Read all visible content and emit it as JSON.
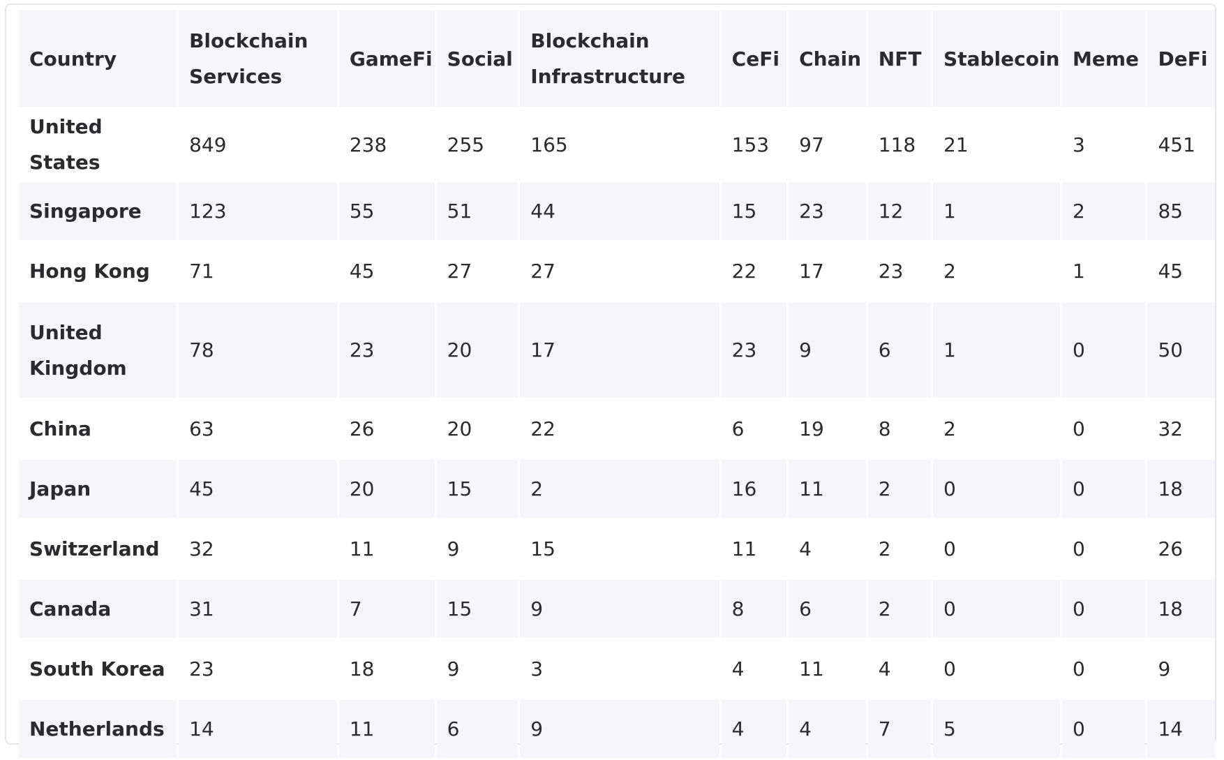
{
  "table": {
    "headers": [
      "Country",
      "Blockchain Services",
      "GameFi",
      "Social",
      "Blockchain Infrastructure",
      "CeFi",
      "Chain",
      "NFT",
      "Stablecoin",
      "Meme",
      "DeFi"
    ],
    "rows": [
      [
        "United States",
        "849",
        "238",
        "255",
        "165",
        "153",
        "97",
        "118",
        "21",
        "3",
        "451"
      ],
      [
        "Singapore",
        "123",
        "55",
        "51",
        "44",
        "15",
        "23",
        "12",
        "1",
        "2",
        "85"
      ],
      [
        "Hong Kong",
        "71",
        "45",
        "27",
        "27",
        "22",
        "17",
        "23",
        "2",
        "1",
        "45"
      ],
      [
        "United Kingdom",
        "78",
        "23",
        "20",
        "17",
        "23",
        "9",
        "6",
        "1",
        "0",
        "50"
      ],
      [
        "China",
        "63",
        "26",
        "20",
        "22",
        "6",
        "19",
        "8",
        "2",
        "0",
        "32"
      ],
      [
        "Japan",
        "45",
        "20",
        "15",
        "2",
        "16",
        "11",
        "2",
        "0",
        "0",
        "18"
      ],
      [
        "Switzerland",
        "32",
        "11",
        "9",
        "15",
        "11",
        "4",
        "2",
        "0",
        "0",
        "26"
      ],
      [
        "Canada",
        "31",
        "7",
        "15",
        "9",
        "8",
        "6",
        "2",
        "0",
        "0",
        "18"
      ],
      [
        "South Korea",
        "23",
        "18",
        "9",
        "3",
        "4",
        "11",
        "4",
        "0",
        "0",
        "9"
      ],
      [
        "Netherlands",
        "14",
        "11",
        "6",
        "9",
        "4",
        "4",
        "7",
        "5",
        "0",
        "14"
      ]
    ]
  }
}
